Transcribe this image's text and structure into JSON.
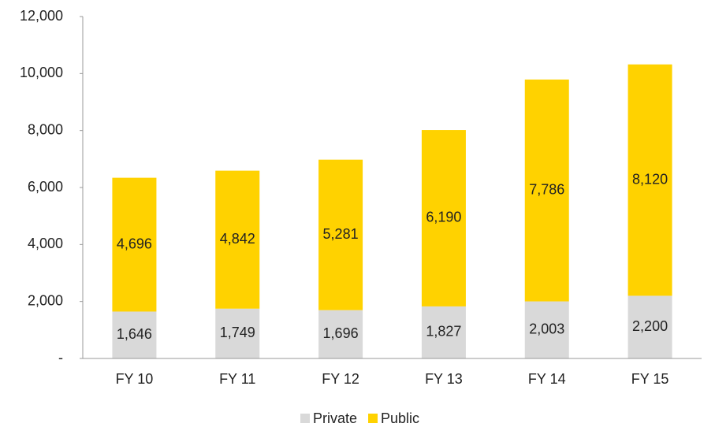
{
  "chart_data": {
    "type": "stacked_bar",
    "categories": [
      "FY 10",
      "FY 11",
      "FY 12",
      "FY 13",
      "FY 14",
      "FY 15"
    ],
    "series": [
      {
        "name": "Private",
        "color": "#d9d9d9",
        "values": [
          1646,
          1749,
          1696,
          1827,
          2003,
          2200
        ],
        "value_labels": [
          "1,646",
          "1,749",
          "1,696",
          "1,827",
          "2,003",
          "2,200"
        ]
      },
      {
        "name": "Public",
        "color": "#ffd200",
        "values": [
          4696,
          4842,
          5281,
          6190,
          7786,
          8120
        ],
        "value_labels": [
          "4,696",
          "4,842",
          "5,281",
          "6,190",
          "7,786",
          "8,120"
        ]
      }
    ],
    "ylim": [
      0,
      12000
    ],
    "yticks": [
      {
        "value": 0,
        "label": "-"
      },
      {
        "value": 2000,
        "label": "2,000"
      },
      {
        "value": 4000,
        "label": "4,000"
      },
      {
        "value": 6000,
        "label": "6,000"
      },
      {
        "value": 8000,
        "label": "8,000"
      },
      {
        "value": 10000,
        "label": "10,000"
      },
      {
        "value": 12000,
        "label": "12,000"
      }
    ],
    "legend": "bottom"
  }
}
